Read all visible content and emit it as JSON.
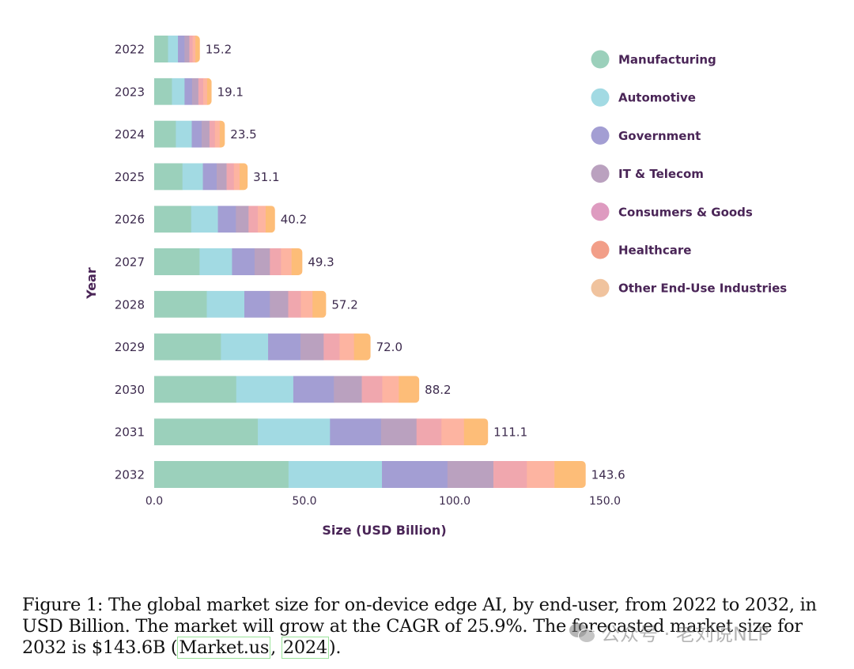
{
  "chart_data": {
    "type": "bar",
    "orientation": "horizontal",
    "stacked": true,
    "title": "",
    "xlabel": "Size (USD Billion)",
    "ylabel": "Year",
    "xlim": [
      0,
      150
    ],
    "x_ticks": [
      "0.0",
      "50.0",
      "100.0",
      "150.0"
    ],
    "x_tick_values": [
      0,
      50,
      100,
      150
    ],
    "grid": false,
    "legend_position": "top-right",
    "categories": [
      "2022",
      "2023",
      "2024",
      "2025",
      "2026",
      "2027",
      "2028",
      "2029",
      "2030",
      "2031",
      "2032"
    ],
    "totals": [
      15.2,
      19.1,
      23.5,
      31.1,
      40.2,
      49.3,
      57.2,
      72.0,
      88.2,
      111.1,
      143.6
    ],
    "total_labels": [
      "15.2",
      "19.1",
      "23.5",
      "31.1",
      "40.2",
      "49.3",
      "57.2",
      "72.0",
      "88.2",
      "111.1",
      "143.6"
    ],
    "series": [
      {
        "name": "Manufacturing",
        "color": "#9bd0bb",
        "legend_color": "#9bd0bb",
        "values": [
          4.6,
          5.9,
          7.2,
          9.4,
          12.3,
          15.1,
          17.5,
          22.2,
          27.3,
          34.5,
          44.7
        ]
      },
      {
        "name": "Automotive",
        "color": "#a2dae3",
        "legend_color": "#a2dae3",
        "values": [
          3.3,
          4.2,
          5.3,
          6.8,
          8.9,
          10.8,
          12.5,
          15.7,
          19.0,
          24.0,
          31.1
        ]
      },
      {
        "name": "Government",
        "color": "#a39ed3",
        "legend_color": "#a39ed3",
        "values": [
          2.2,
          2.5,
          3.3,
          4.6,
          6.0,
          7.5,
          8.5,
          10.8,
          13.5,
          17.0,
          21.8
        ]
      },
      {
        "name": "IT & Telecom",
        "color": "#baa1bf",
        "legend_color": "#baa1bf",
        "values": [
          1.6,
          2.1,
          2.6,
          3.3,
          4.2,
          5.1,
          6.1,
          7.7,
          9.3,
          11.8,
          15.3
        ]
      },
      {
        "name": "Consumers & Goods",
        "color": "#f0a7ae",
        "legend_color": "#de9bc0",
        "values": [
          1.1,
          1.6,
          1.8,
          2.4,
          3.1,
          3.7,
          4.2,
          5.3,
          6.8,
          8.3,
          11.1
        ]
      },
      {
        "name": "Healthcare",
        "color": "#fdb4a1",
        "legend_color": "#f29e88",
        "values": [
          0.9,
          1.3,
          1.6,
          1.9,
          2.6,
          3.5,
          3.9,
          4.8,
          5.5,
          7.5,
          9.2
        ]
      },
      {
        "name": "Other End-Use Industries",
        "color": "#fdbd78",
        "legend_color": "#f0c39e",
        "values": [
          1.5,
          1.5,
          1.7,
          2.7,
          3.1,
          3.6,
          4.5,
          5.5,
          6.8,
          8.0,
          10.4
        ]
      }
    ]
  },
  "caption": {
    "line1": "Figure 1: The global market size for on-device edge AI, by end-user, from 2022 to 2032, in",
    "line2": "USD Billion. The market will grow at the CAGR of 25.9%. The forecasted market size for",
    "line3_prefix": "2032 is $143.6B (",
    "cite_source": "Market.us",
    "cite_sep": ", ",
    "cite_year": "2024",
    "line3_suffix": ")."
  },
  "watermark": {
    "text": "公众号 · 老刘说NLP",
    "icon": "wechat-icon"
  }
}
